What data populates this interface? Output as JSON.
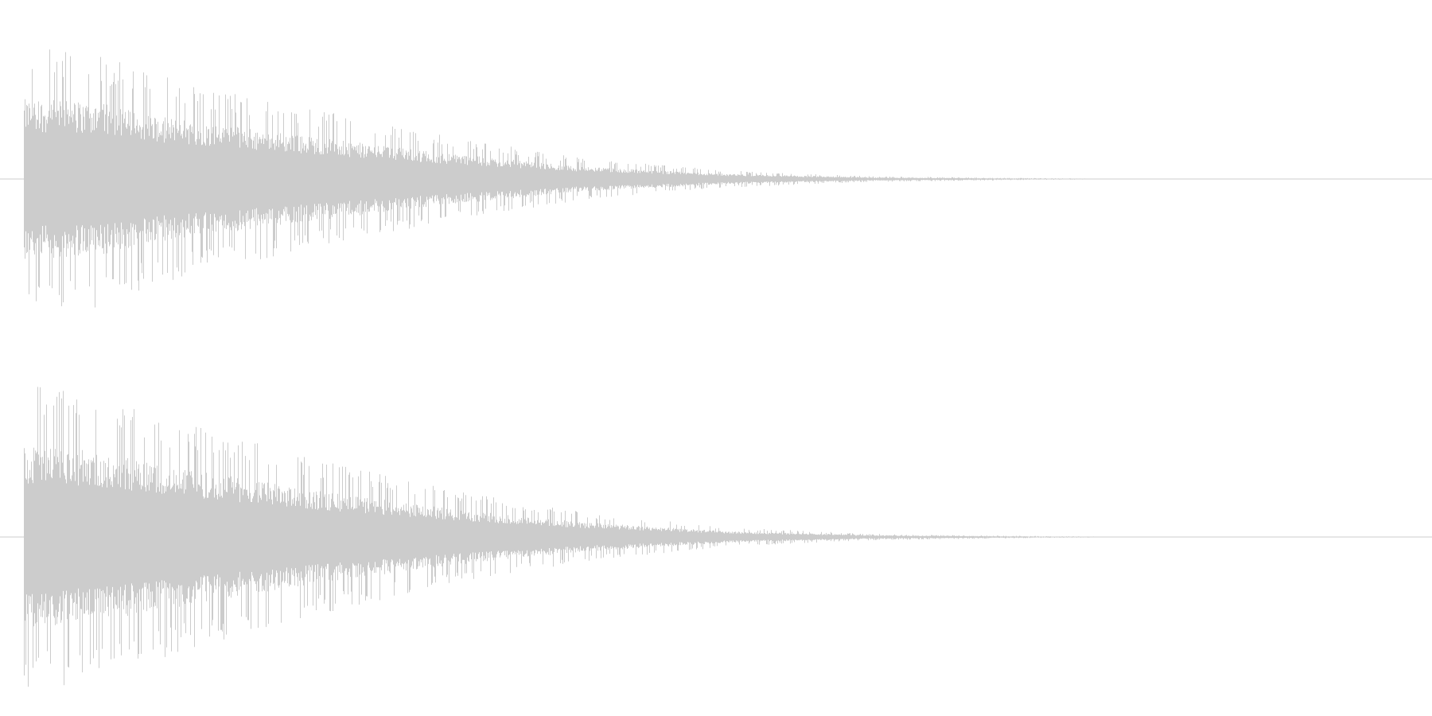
{
  "colors": {
    "background": "#ffffff",
    "waveform": "#cccccc",
    "baseline": "#cccccc"
  },
  "chart_data": {
    "type": "area",
    "title": "",
    "xlabel": "",
    "ylabel": "",
    "grid": false,
    "ylim": [
      -1,
      1
    ],
    "x_range": [
      0,
      1
    ],
    "series": [
      {
        "envelope": {
          "x": [
            0.0,
            0.05,
            0.1,
            0.2,
            0.3,
            0.4,
            0.5,
            0.6,
            0.7,
            0.8
          ],
          "y": [
            0.93,
            0.9,
            0.72,
            0.5,
            0.3,
            0.14,
            0.06,
            0.02,
            0.008,
            0.0
          ]
        }
      },
      {
        "envelope": {
          "x": [
            0.0,
            0.05,
            0.1,
            0.2,
            0.3,
            0.4,
            0.5,
            0.6,
            0.7,
            0.8
          ],
          "y": [
            0.95,
            0.9,
            0.75,
            0.5,
            0.3,
            0.15,
            0.06,
            0.02,
            0.008,
            0.0
          ]
        }
      }
    ]
  }
}
